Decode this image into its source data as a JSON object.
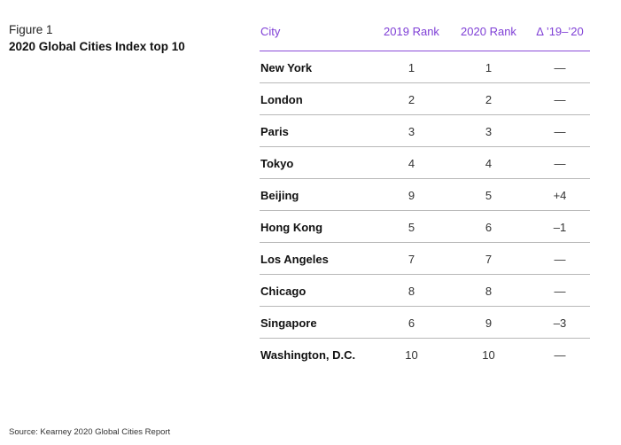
{
  "figure_label": "Figure 1",
  "title": "2020 Global Cities Index top 10",
  "source": "Source: Kearney 2020 Global Cities Report",
  "colors": {
    "header_text": "#7f3fd6",
    "header_rule": "#8a4bd8",
    "row_rule": "#b8b8b8"
  },
  "chart_data": {
    "type": "table",
    "title": "2020 Global Cities Index top 10",
    "columns": [
      "City",
      "2019 Rank",
      "2020 Rank",
      "Δ ’19–’20"
    ],
    "rows": [
      {
        "city": "New York",
        "rank_2019": "1",
        "rank_2020": "1",
        "delta": "—"
      },
      {
        "city": "London",
        "rank_2019": "2",
        "rank_2020": "2",
        "delta": "—"
      },
      {
        "city": "Paris",
        "rank_2019": "3",
        "rank_2020": "3",
        "delta": "—"
      },
      {
        "city": "Tokyo",
        "rank_2019": "4",
        "rank_2020": "4",
        "delta": "—"
      },
      {
        "city": "Beijing",
        "rank_2019": "9",
        "rank_2020": "5",
        "delta": "+4"
      },
      {
        "city": "Hong Kong",
        "rank_2019": "5",
        "rank_2020": "6",
        "delta": "–1"
      },
      {
        "city": "Los Angeles",
        "rank_2019": "7",
        "rank_2020": "7",
        "delta": "—"
      },
      {
        "city": "Chicago",
        "rank_2019": "8",
        "rank_2020": "8",
        "delta": "—"
      },
      {
        "city": "Singapore",
        "rank_2019": "6",
        "rank_2020": "9",
        "delta": "–3"
      },
      {
        "city": "Washington, D.C.",
        "rank_2019": "10",
        "rank_2020": "10",
        "delta": "—"
      }
    ]
  }
}
